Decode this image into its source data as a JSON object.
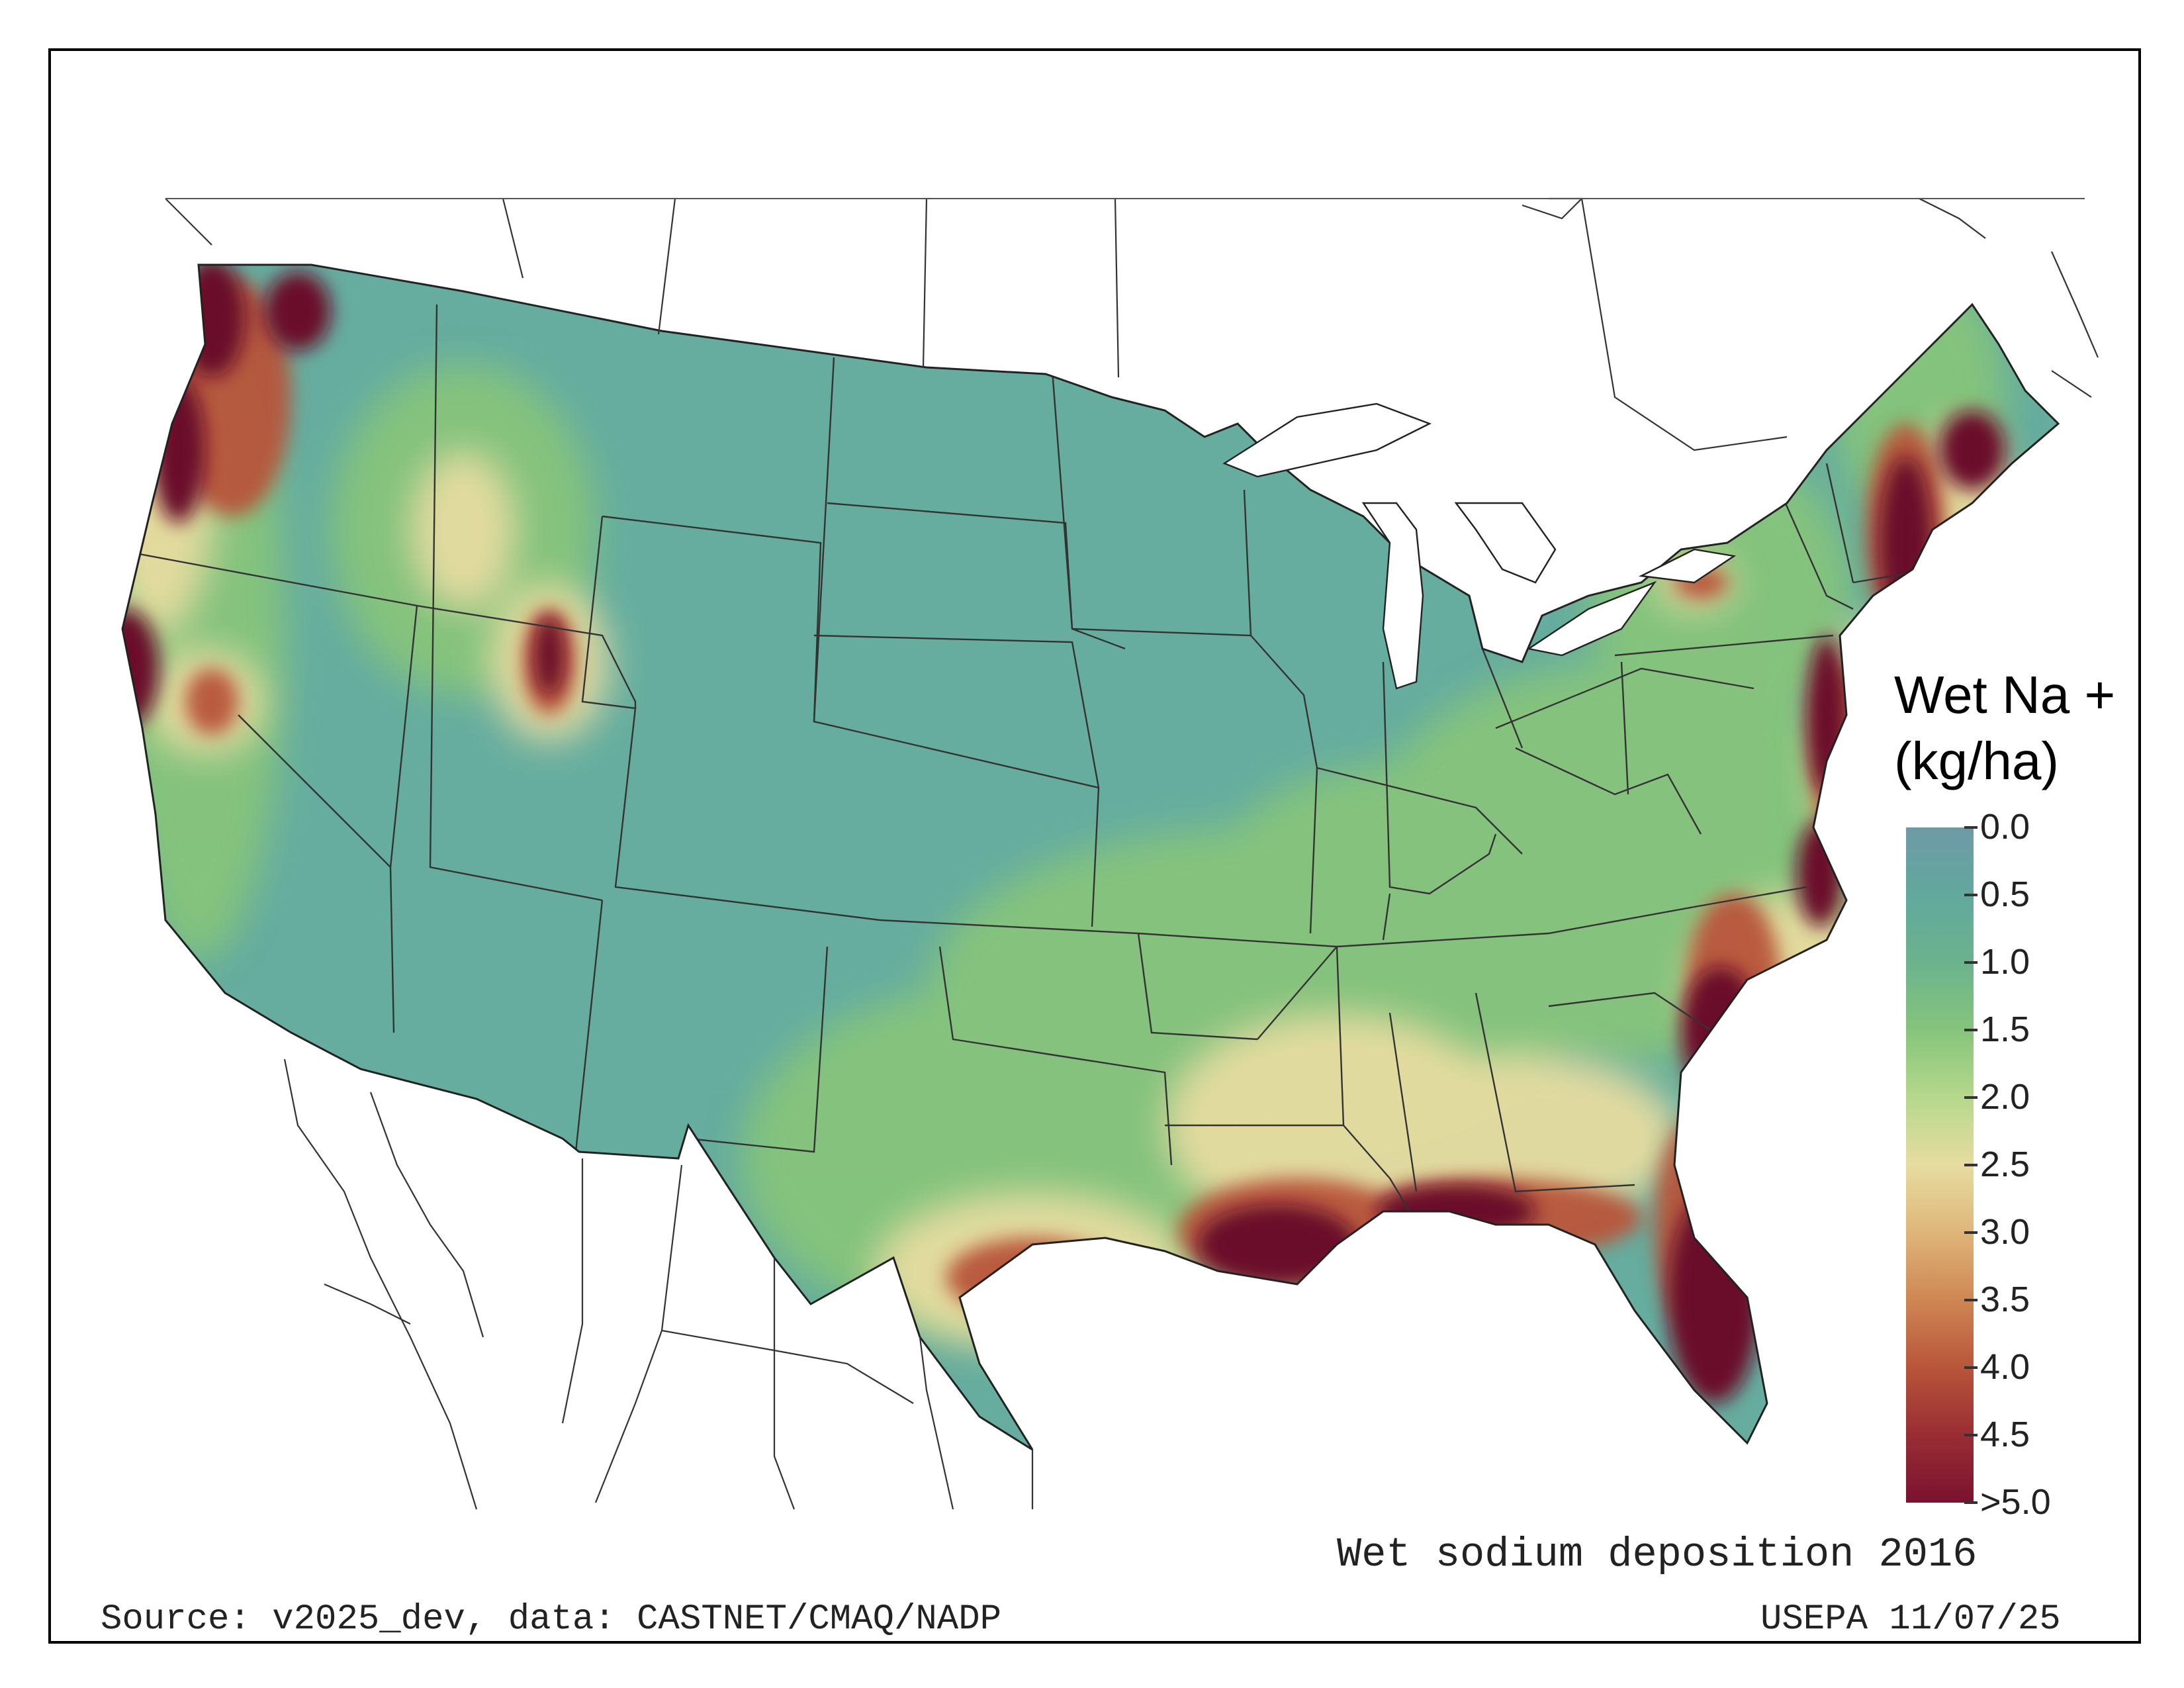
{
  "map": {
    "title": "Wet sodium deposition 2016",
    "source": "Source: v2025_dev, data: CASTNET/CMAQ/NADP",
    "credit": "USEPA 11/07/25"
  },
  "legend": {
    "title_line1": "Wet Na +",
    "title_line2": "(kg/ha)",
    "ticks": [
      "0.0",
      "0.5",
      "1.0",
      "1.5",
      "2.0",
      "2.5",
      "3.0",
      "3.5",
      "4.0",
      "4.5",
      ">5.0"
    ],
    "colors": [
      "#6e9aa6",
      "#62a89d",
      "#6bb38d",
      "#86c47c",
      "#b6d88c",
      "#e7dca0",
      "#dfb579",
      "#cf8653",
      "#b8553b",
      "#9a2d34",
      "#7a1230"
    ]
  },
  "colors": {
    "low": "#66ad9f",
    "mid": "#86c47c",
    "high_mid": "#e7dca0",
    "high": "#b8553b",
    "max": "#6b0d2b"
  }
}
